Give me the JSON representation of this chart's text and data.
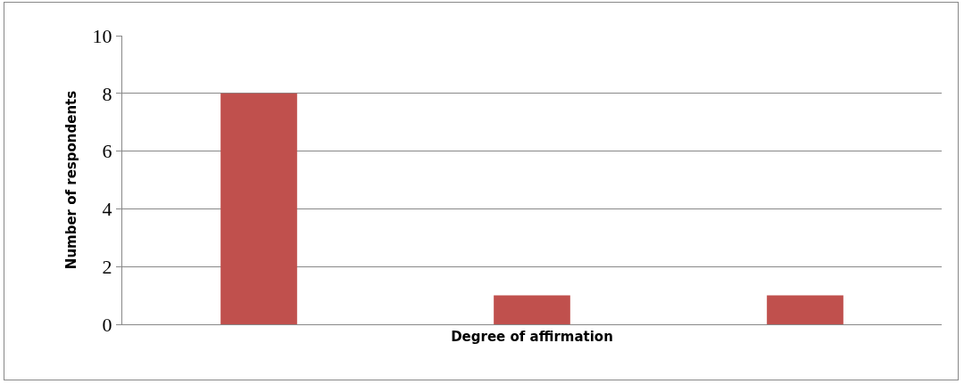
{
  "chart_data": {
    "type": "bar",
    "xlabel": "Degree of affirmation",
    "ylabel": "Number of respondents",
    "categories": [
      null,
      null,
      null
    ],
    "values": [
      8,
      1,
      1
    ],
    "color": "#c0504d",
    "ylim": [
      0,
      10
    ],
    "yticks": [
      0,
      2,
      4,
      6,
      8,
      10
    ],
    "grid": "y",
    "legend": false,
    "tick_labels": "y"
  }
}
